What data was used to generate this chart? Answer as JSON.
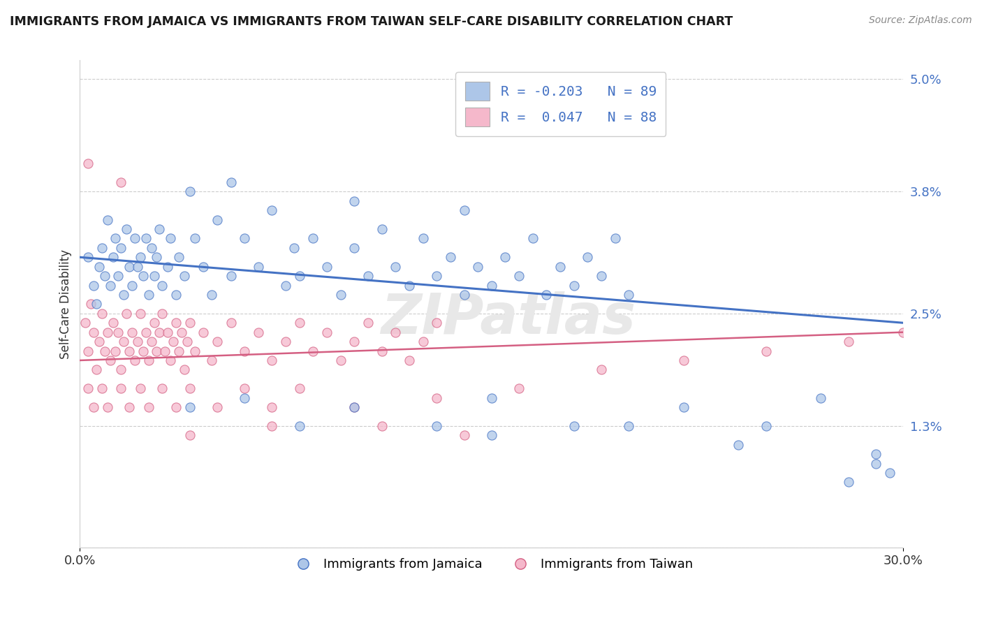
{
  "title": "IMMIGRANTS FROM JAMAICA VS IMMIGRANTS FROM TAIWAN SELF-CARE DISABILITY CORRELATION CHART",
  "source": "Source: ZipAtlas.com",
  "ylabel": "Self-Care Disability",
  "xlim": [
    0.0,
    0.3
  ],
  "ylim": [
    0.0,
    0.052
  ],
  "yticks": [
    0.0,
    0.013,
    0.025,
    0.038,
    0.05
  ],
  "ytick_labels": [
    "",
    "1.3%",
    "2.5%",
    "3.8%",
    "5.0%"
  ],
  "xticks": [
    0.0,
    0.3
  ],
  "xtick_labels": [
    "0.0%",
    "30.0%"
  ],
  "r_jamaica": -0.203,
  "n_jamaica": 89,
  "r_taiwan": 0.047,
  "n_taiwan": 88,
  "color_jamaica": "#adc6e8",
  "color_taiwan": "#f5b8cb",
  "trendline_jamaica": "#4472c4",
  "trendline_taiwan": "#d45f82",
  "legend_label_jamaica": "Immigrants from Jamaica",
  "legend_label_taiwan": "Immigrants from Taiwan",
  "watermark": "ZIPatlas",
  "jamaica_trend": [
    0.031,
    0.024
  ],
  "taiwan_trend": [
    0.02,
    0.023
  ],
  "jamaica_points": [
    [
      0.003,
      0.031
    ],
    [
      0.005,
      0.028
    ],
    [
      0.006,
      0.026
    ],
    [
      0.007,
      0.03
    ],
    [
      0.008,
      0.032
    ],
    [
      0.009,
      0.029
    ],
    [
      0.01,
      0.035
    ],
    [
      0.011,
      0.028
    ],
    [
      0.012,
      0.031
    ],
    [
      0.013,
      0.033
    ],
    [
      0.014,
      0.029
    ],
    [
      0.015,
      0.032
    ],
    [
      0.016,
      0.027
    ],
    [
      0.017,
      0.034
    ],
    [
      0.018,
      0.03
    ],
    [
      0.019,
      0.028
    ],
    [
      0.02,
      0.033
    ],
    [
      0.021,
      0.03
    ],
    [
      0.022,
      0.031
    ],
    [
      0.023,
      0.029
    ],
    [
      0.024,
      0.033
    ],
    [
      0.025,
      0.027
    ],
    [
      0.026,
      0.032
    ],
    [
      0.027,
      0.029
    ],
    [
      0.028,
      0.031
    ],
    [
      0.029,
      0.034
    ],
    [
      0.03,
      0.028
    ],
    [
      0.032,
      0.03
    ],
    [
      0.033,
      0.033
    ],
    [
      0.035,
      0.027
    ],
    [
      0.036,
      0.031
    ],
    [
      0.038,
      0.029
    ],
    [
      0.04,
      0.038
    ],
    [
      0.042,
      0.033
    ],
    [
      0.045,
      0.03
    ],
    [
      0.048,
      0.027
    ],
    [
      0.05,
      0.035
    ],
    [
      0.055,
      0.029
    ],
    [
      0.06,
      0.033
    ],
    [
      0.065,
      0.03
    ],
    [
      0.07,
      0.036
    ],
    [
      0.075,
      0.028
    ],
    [
      0.078,
      0.032
    ],
    [
      0.08,
      0.029
    ],
    [
      0.085,
      0.033
    ],
    [
      0.09,
      0.03
    ],
    [
      0.095,
      0.027
    ],
    [
      0.1,
      0.032
    ],
    [
      0.105,
      0.029
    ],
    [
      0.11,
      0.034
    ],
    [
      0.115,
      0.03
    ],
    [
      0.12,
      0.028
    ],
    [
      0.125,
      0.033
    ],
    [
      0.13,
      0.029
    ],
    [
      0.135,
      0.031
    ],
    [
      0.14,
      0.027
    ],
    [
      0.145,
      0.03
    ],
    [
      0.15,
      0.028
    ],
    [
      0.155,
      0.031
    ],
    [
      0.16,
      0.029
    ],
    [
      0.165,
      0.033
    ],
    [
      0.17,
      0.027
    ],
    [
      0.175,
      0.03
    ],
    [
      0.18,
      0.028
    ],
    [
      0.185,
      0.031
    ],
    [
      0.19,
      0.029
    ],
    [
      0.195,
      0.033
    ],
    [
      0.2,
      0.027
    ],
    [
      0.04,
      0.015
    ],
    [
      0.06,
      0.016
    ],
    [
      0.08,
      0.013
    ],
    [
      0.1,
      0.015
    ],
    [
      0.13,
      0.013
    ],
    [
      0.15,
      0.016
    ],
    [
      0.18,
      0.013
    ],
    [
      0.22,
      0.015
    ],
    [
      0.25,
      0.013
    ],
    [
      0.27,
      0.016
    ],
    [
      0.29,
      0.009
    ],
    [
      0.15,
      0.012
    ],
    [
      0.2,
      0.013
    ],
    [
      0.24,
      0.011
    ],
    [
      0.28,
      0.007
    ],
    [
      0.29,
      0.01
    ],
    [
      0.295,
      0.008
    ],
    [
      0.055,
      0.039
    ],
    [
      0.1,
      0.037
    ],
    [
      0.14,
      0.036
    ]
  ],
  "taiwan_points": [
    [
      0.002,
      0.024
    ],
    [
      0.003,
      0.021
    ],
    [
      0.004,
      0.026
    ],
    [
      0.005,
      0.023
    ],
    [
      0.006,
      0.019
    ],
    [
      0.007,
      0.022
    ],
    [
      0.008,
      0.025
    ],
    [
      0.009,
      0.021
    ],
    [
      0.01,
      0.023
    ],
    [
      0.011,
      0.02
    ],
    [
      0.012,
      0.024
    ],
    [
      0.013,
      0.021
    ],
    [
      0.014,
      0.023
    ],
    [
      0.015,
      0.019
    ],
    [
      0.016,
      0.022
    ],
    [
      0.017,
      0.025
    ],
    [
      0.018,
      0.021
    ],
    [
      0.019,
      0.023
    ],
    [
      0.02,
      0.02
    ],
    [
      0.021,
      0.022
    ],
    [
      0.022,
      0.025
    ],
    [
      0.023,
      0.021
    ],
    [
      0.024,
      0.023
    ],
    [
      0.025,
      0.02
    ],
    [
      0.026,
      0.022
    ],
    [
      0.027,
      0.024
    ],
    [
      0.028,
      0.021
    ],
    [
      0.029,
      0.023
    ],
    [
      0.03,
      0.025
    ],
    [
      0.031,
      0.021
    ],
    [
      0.032,
      0.023
    ],
    [
      0.033,
      0.02
    ],
    [
      0.034,
      0.022
    ],
    [
      0.035,
      0.024
    ],
    [
      0.036,
      0.021
    ],
    [
      0.037,
      0.023
    ],
    [
      0.038,
      0.019
    ],
    [
      0.039,
      0.022
    ],
    [
      0.04,
      0.024
    ],
    [
      0.042,
      0.021
    ],
    [
      0.045,
      0.023
    ],
    [
      0.048,
      0.02
    ],
    [
      0.05,
      0.022
    ],
    [
      0.055,
      0.024
    ],
    [
      0.06,
      0.021
    ],
    [
      0.065,
      0.023
    ],
    [
      0.07,
      0.02
    ],
    [
      0.075,
      0.022
    ],
    [
      0.08,
      0.024
    ],
    [
      0.085,
      0.021
    ],
    [
      0.09,
      0.023
    ],
    [
      0.095,
      0.02
    ],
    [
      0.1,
      0.022
    ],
    [
      0.105,
      0.024
    ],
    [
      0.11,
      0.021
    ],
    [
      0.115,
      0.023
    ],
    [
      0.12,
      0.02
    ],
    [
      0.125,
      0.022
    ],
    [
      0.13,
      0.024
    ],
    [
      0.003,
      0.017
    ],
    [
      0.005,
      0.015
    ],
    [
      0.008,
      0.017
    ],
    [
      0.01,
      0.015
    ],
    [
      0.015,
      0.017
    ],
    [
      0.018,
      0.015
    ],
    [
      0.022,
      0.017
    ],
    [
      0.025,
      0.015
    ],
    [
      0.03,
      0.017
    ],
    [
      0.035,
      0.015
    ],
    [
      0.04,
      0.017
    ],
    [
      0.05,
      0.015
    ],
    [
      0.06,
      0.017
    ],
    [
      0.07,
      0.015
    ],
    [
      0.08,
      0.017
    ],
    [
      0.1,
      0.015
    ],
    [
      0.13,
      0.016
    ],
    [
      0.16,
      0.017
    ],
    [
      0.19,
      0.019
    ],
    [
      0.22,
      0.02
    ],
    [
      0.25,
      0.021
    ],
    [
      0.28,
      0.022
    ],
    [
      0.3,
      0.023
    ],
    [
      0.003,
      0.041
    ],
    [
      0.015,
      0.039
    ],
    [
      0.04,
      0.012
    ],
    [
      0.07,
      0.013
    ],
    [
      0.11,
      0.013
    ],
    [
      0.14,
      0.012
    ]
  ]
}
